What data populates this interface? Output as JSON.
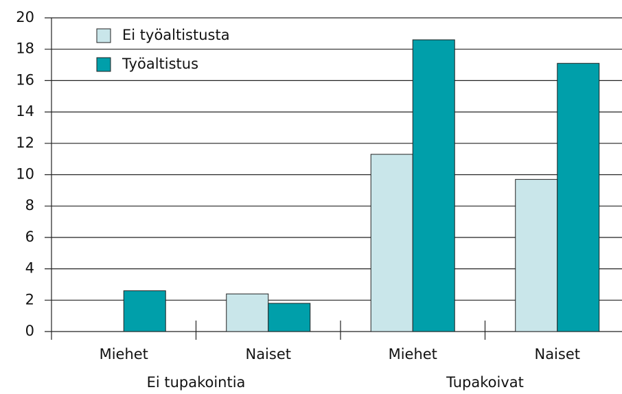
{
  "chart_data": {
    "type": "bar",
    "categories": [
      "Miehet",
      "Naiset",
      "Miehet",
      "Naiset"
    ],
    "groups": [
      "Ei tupakointia",
      "Tupakoivat"
    ],
    "series": [
      {
        "name": "Ei työaltistusta",
        "color": "#c9e6ea",
        "values": [
          null,
          2.4,
          11.3,
          9.7
        ]
      },
      {
        "name": "Työaltistus",
        "color": "#009faa",
        "values": [
          2.6,
          1.8,
          18.6,
          17.1
        ]
      }
    ],
    "ylim": [
      0,
      20
    ],
    "yticks": [
      0,
      2,
      4,
      6,
      8,
      10,
      12,
      14,
      16,
      18,
      20
    ],
    "grid": true,
    "legend": "upper left"
  }
}
